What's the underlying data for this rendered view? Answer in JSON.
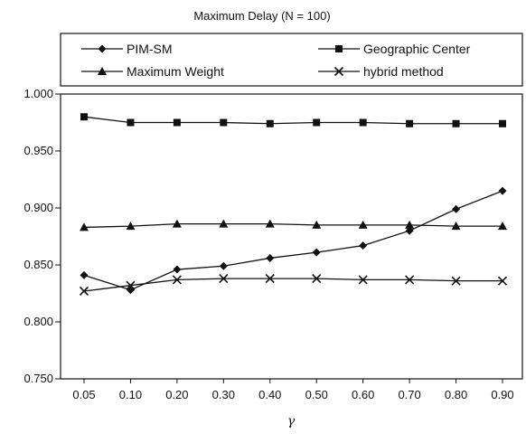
{
  "chart_data": {
    "type": "line",
    "title": "Maximum Delay (N = 100)",
    "xlabel": "γ",
    "ylabel": "",
    "categories": [
      "0.05",
      "0.10",
      "0.20",
      "0.30",
      "0.40",
      "0.50",
      "0.60",
      "0.70",
      "0.80",
      "0.90"
    ],
    "ylim": [
      0.75,
      1.0
    ],
    "yticks": [
      "1.000",
      "0.950",
      "0.900",
      "0.850",
      "0.800",
      "0.750"
    ],
    "grid": false,
    "legend_position": "top",
    "series": [
      {
        "name": "PIM-SM",
        "marker": "diamond",
        "values": [
          0.841,
          0.828,
          0.846,
          0.849,
          0.856,
          0.861,
          0.867,
          0.88,
          0.899,
          0.915
        ]
      },
      {
        "name": "Geographic Center",
        "marker": "square",
        "values": [
          0.98,
          0.975,
          0.975,
          0.975,
          0.974,
          0.975,
          0.975,
          0.974,
          0.974,
          0.974
        ]
      },
      {
        "name": "Maximum Weight",
        "marker": "triangle",
        "values": [
          0.883,
          0.884,
          0.886,
          0.886,
          0.886,
          0.885,
          0.885,
          0.885,
          0.884,
          0.884
        ]
      },
      {
        "name": "hybrid method",
        "marker": "x",
        "values": [
          0.827,
          0.832,
          0.837,
          0.838,
          0.838,
          0.838,
          0.837,
          0.837,
          0.836,
          0.836
        ]
      }
    ]
  }
}
